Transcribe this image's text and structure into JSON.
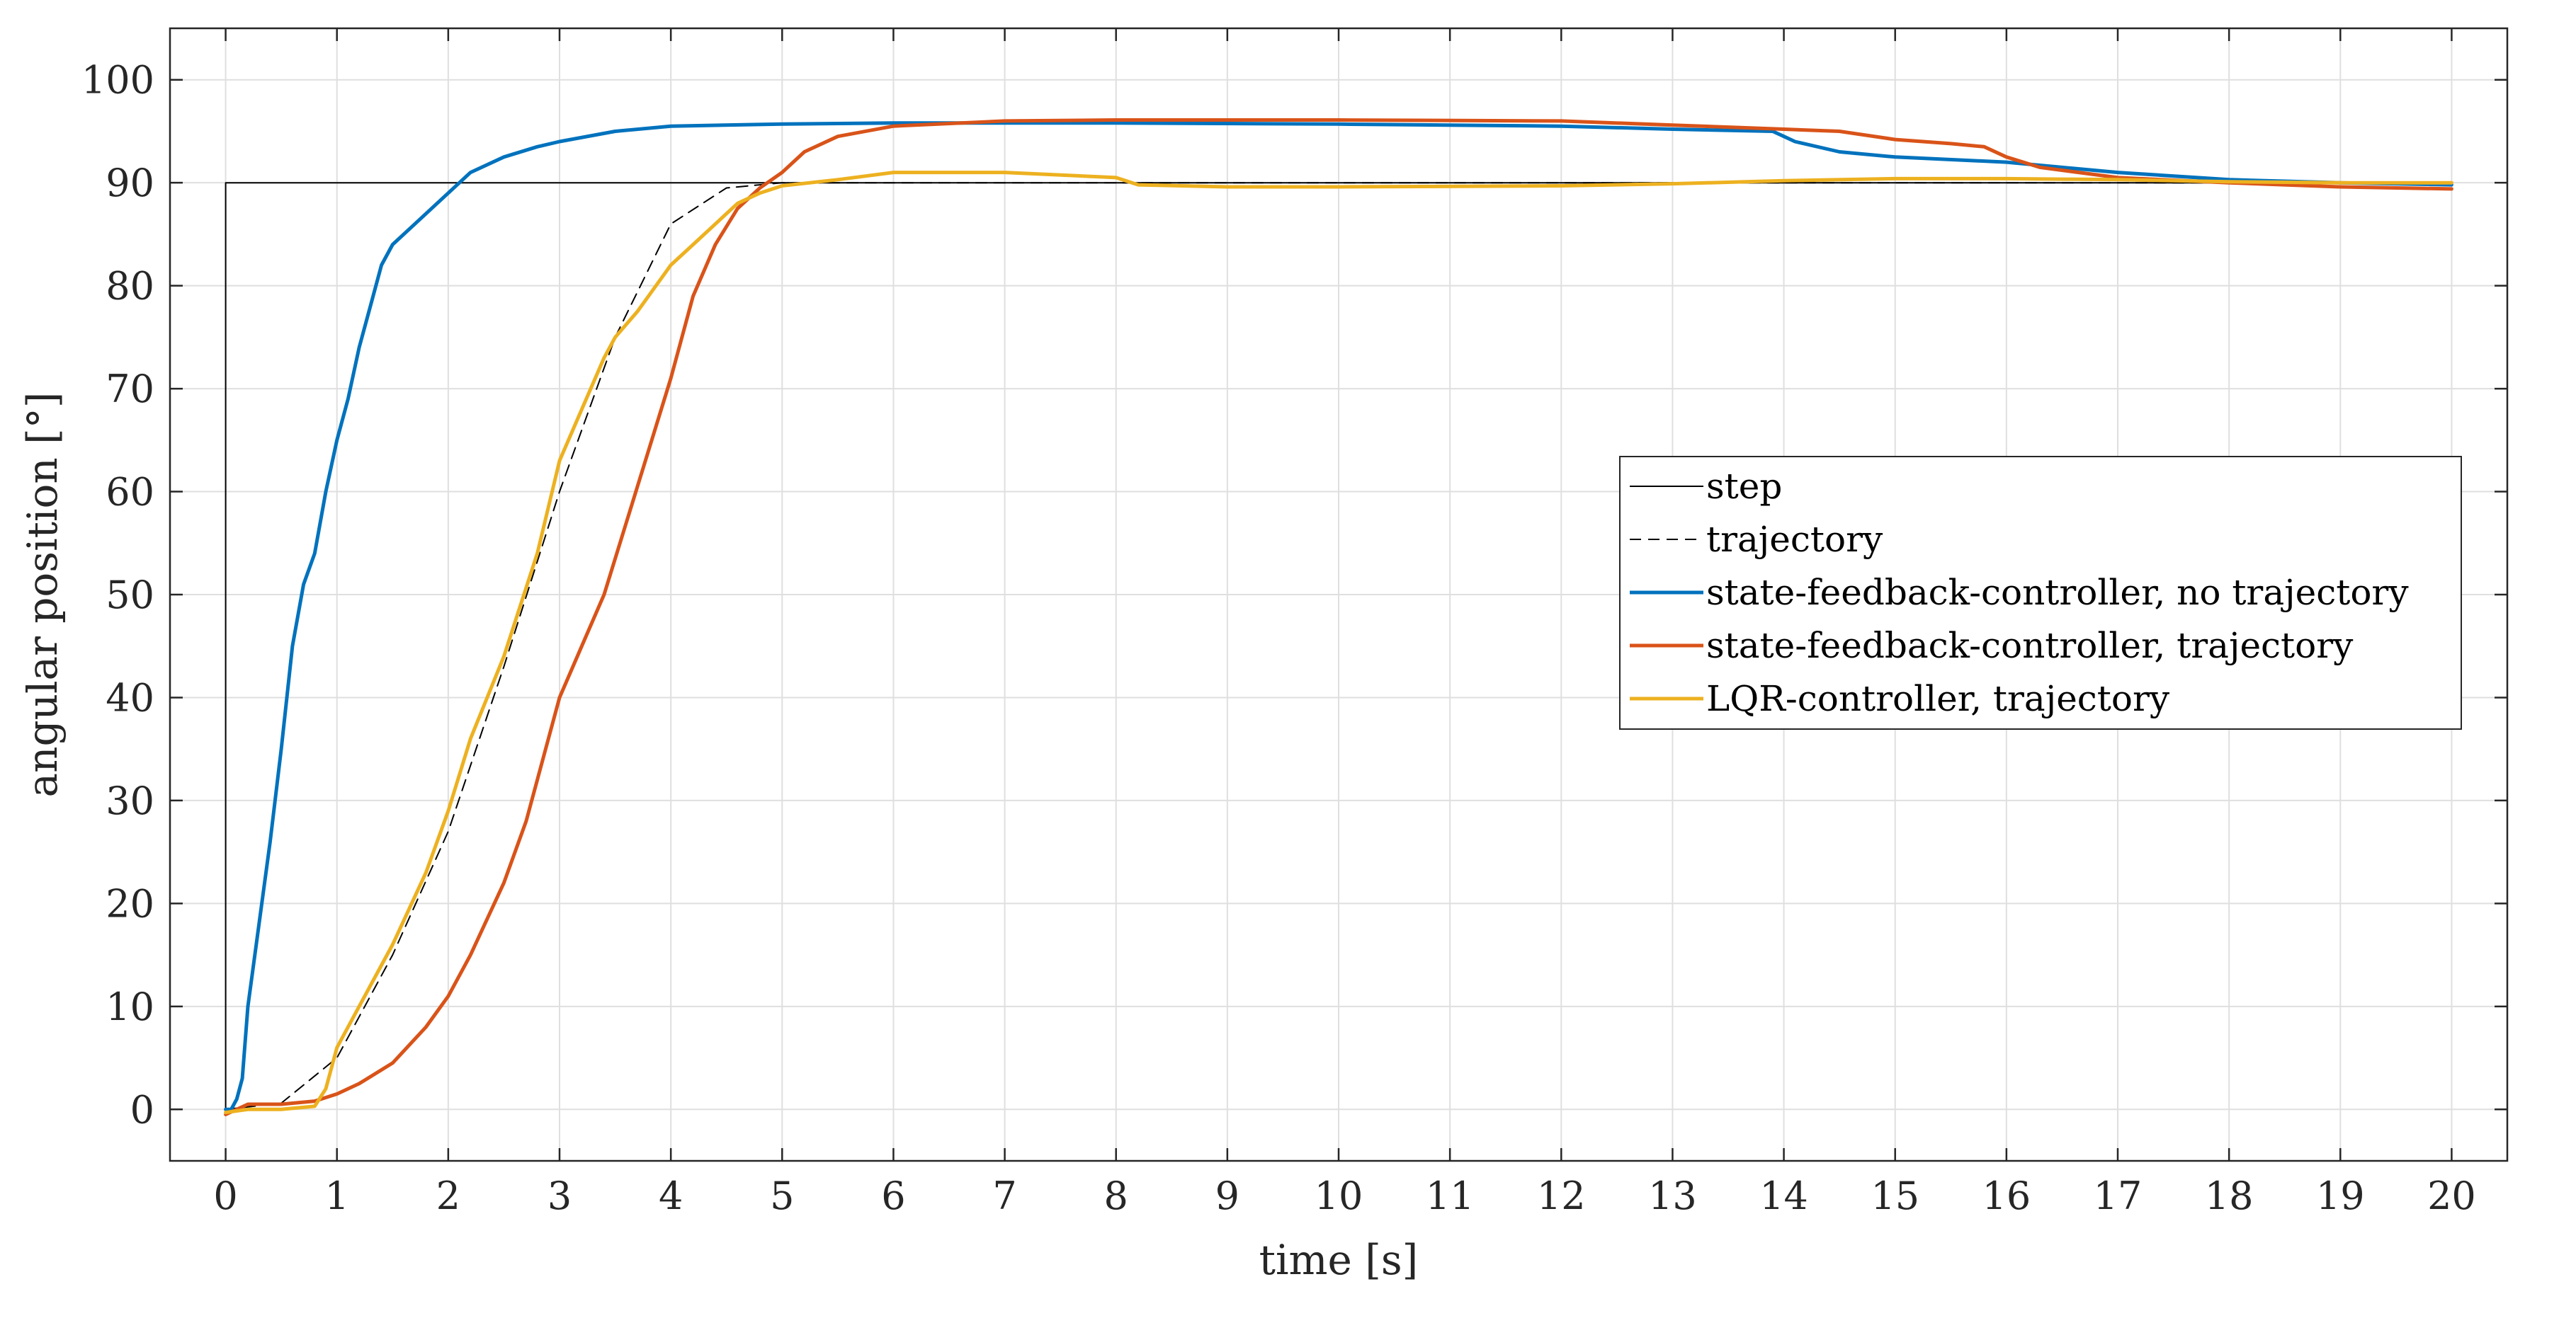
{
  "chart_data": {
    "type": "line",
    "xlabel": "time [s]",
    "ylabel": "angular position [°]",
    "xlim": [
      -0.5,
      20.5
    ],
    "ylim": [
      -5,
      105
    ],
    "xticks": [
      0,
      1,
      2,
      3,
      4,
      5,
      6,
      7,
      8,
      9,
      10,
      11,
      12,
      13,
      14,
      15,
      16,
      17,
      18,
      19,
      20
    ],
    "yticks": [
      0,
      10,
      20,
      30,
      40,
      50,
      60,
      70,
      80,
      90,
      100
    ],
    "grid": true,
    "legend_position": "center-right",
    "series": [
      {
        "name": "step",
        "color": "#000000",
        "style": "solid",
        "x": [
          0,
          0,
          20
        ],
        "y": [
          0,
          90,
          90
        ]
      },
      {
        "name": "trajectory",
        "color": "#000000",
        "style": "dashed",
        "x": [
          0,
          0.5,
          1,
          1.5,
          2,
          2.5,
          3,
          3.5,
          4,
          4.5,
          5,
          20
        ],
        "y": [
          0,
          0.6,
          5,
          15,
          27,
          43,
          60,
          75,
          86,
          89.5,
          90,
          90
        ]
      },
      {
        "name": "state-feedback-controller, no trajectory",
        "color": "#0072BD",
        "style": "solid",
        "x": [
          0,
          0.05,
          0.1,
          0.15,
          0.2,
          0.3,
          0.4,
          0.5,
          0.6,
          0.7,
          0.8,
          0.9,
          1.0,
          1.1,
          1.2,
          1.3,
          1.4,
          1.5,
          1.7,
          1.9,
          2.0,
          2.2,
          2.5,
          2.8,
          3.0,
          3.5,
          4.0,
          5.0,
          6.0,
          7.0,
          8.0,
          10.0,
          12.0,
          13.0,
          13.9,
          14.0,
          14.1,
          14.5,
          15.0,
          16.0,
          17.0,
          18.0,
          19.0,
          20.0
        ],
        "y": [
          0,
          0,
          1,
          3,
          10,
          18,
          26,
          35,
          45,
          51,
          54,
          60,
          65,
          69,
          74,
          78,
          82,
          84,
          86,
          88,
          89,
          91,
          92.5,
          93.5,
          94,
          95,
          95.5,
          95.7,
          95.8,
          95.8,
          95.8,
          95.7,
          95.5,
          95.2,
          95,
          94.5,
          94,
          93,
          92.5,
          92,
          91,
          90.3,
          90,
          89.8
        ]
      },
      {
        "name": "state-feedback-controller, trajectory",
        "color": "#D95319",
        "style": "solid",
        "x": [
          0,
          0.2,
          0.5,
          0.8,
          1.0,
          1.2,
          1.5,
          1.8,
          2.0,
          2.2,
          2.5,
          2.7,
          2.9,
          3.0,
          3.2,
          3.4,
          3.6,
          3.8,
          4.0,
          4.2,
          4.4,
          4.6,
          4.8,
          5.0,
          5.2,
          5.5,
          6.0,
          7.0,
          8.0,
          10.0,
          12.0,
          13.0,
          14.0,
          14.5,
          15.0,
          15.5,
          15.8,
          16.0,
          16.3,
          17.0,
          18.0,
          19.0,
          20.0
        ],
        "y": [
          -0.5,
          0.5,
          0.5,
          0.8,
          1.5,
          2.5,
          4.5,
          8,
          11,
          15,
          22,
          28,
          36,
          40,
          45,
          50,
          57,
          64,
          71,
          79,
          84,
          87.5,
          89.5,
          91,
          93,
          94.5,
          95.5,
          96,
          96.1,
          96.1,
          96,
          95.6,
          95.2,
          95,
          94.2,
          93.8,
          93.5,
          92.5,
          91.5,
          90.5,
          90,
          89.6,
          89.4
        ]
      },
      {
        "name": "LQR-controller, trajectory",
        "color": "#EDB120",
        "style": "solid",
        "x": [
          0,
          0.2,
          0.5,
          0.8,
          0.9,
          1.0,
          1.2,
          1.5,
          1.8,
          2.0,
          2.2,
          2.5,
          2.8,
          3.0,
          3.2,
          3.4,
          3.5,
          3.7,
          3.8,
          4.0,
          4.2,
          4.4,
          4.6,
          4.8,
          5.0,
          5.5,
          6.0,
          7.0,
          8.0,
          8.2,
          9.0,
          10.0,
          12.0,
          13.0,
          14.0,
          15.0,
          16.0,
          17.0,
          18.0,
          19.0,
          20.0
        ],
        "y": [
          -0.3,
          0,
          0,
          0.3,
          2,
          6,
          10,
          16,
          23,
          29,
          36,
          44,
          54,
          63,
          68,
          73,
          75,
          77.5,
          79,
          82,
          84,
          86,
          88,
          89,
          89.7,
          90.3,
          91,
          91,
          90.5,
          89.8,
          89.6,
          89.6,
          89.7,
          89.9,
          90.2,
          90.4,
          90.4,
          90.3,
          90.1,
          90,
          90
        ]
      }
    ]
  }
}
